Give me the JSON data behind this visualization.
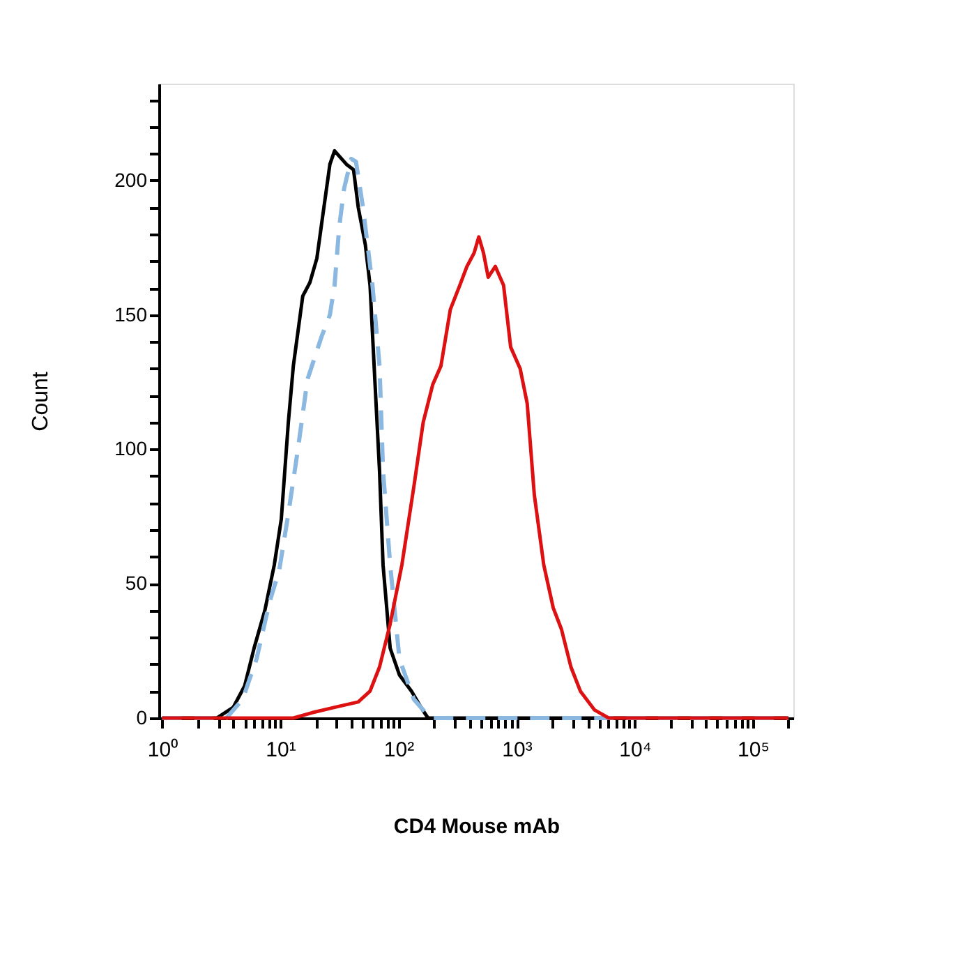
{
  "chart_data": {
    "type": "line",
    "xlabel": "CD4 Mouse mAb",
    "ylabel": "Count",
    "log": "x",
    "grid": false,
    "marker": "none",
    "xlim": [
      0.94,
      220000
    ],
    "ylim": [
      0,
      236
    ],
    "xticks": [
      {
        "value": 1,
        "label": "10⁰"
      },
      {
        "value": 2,
        "label": null
      },
      {
        "value": 3,
        "label": null
      },
      {
        "value": 4,
        "label": null
      },
      {
        "value": 5,
        "label": null
      },
      {
        "value": 6,
        "label": null
      },
      {
        "value": 7,
        "label": null
      },
      {
        "value": 8,
        "label": null
      },
      {
        "value": 9,
        "label": null
      },
      {
        "value": 10,
        "label": "10¹"
      },
      {
        "value": 20,
        "label": null
      },
      {
        "value": 30,
        "label": null
      },
      {
        "value": 40,
        "label": null
      },
      {
        "value": 50,
        "label": null
      },
      {
        "value": 60,
        "label": null
      },
      {
        "value": 70,
        "label": null
      },
      {
        "value": 80,
        "label": null
      },
      {
        "value": 90,
        "label": null
      },
      {
        "value": 100,
        "label": "10²"
      },
      {
        "value": 200,
        "label": null
      },
      {
        "value": 300,
        "label": null
      },
      {
        "value": 400,
        "label": null
      },
      {
        "value": 500,
        "label": null
      },
      {
        "value": 600,
        "label": null
      },
      {
        "value": 700,
        "label": null
      },
      {
        "value": 800,
        "label": null
      },
      {
        "value": 900,
        "label": null
      },
      {
        "value": 1000,
        "label": "10³"
      },
      {
        "value": 2000,
        "label": null
      },
      {
        "value": 3000,
        "label": null
      },
      {
        "value": 4000,
        "label": null
      },
      {
        "value": 5000,
        "label": null
      },
      {
        "value": 6000,
        "label": null
      },
      {
        "value": 7000,
        "label": null
      },
      {
        "value": 8000,
        "label": null
      },
      {
        "value": 9000,
        "label": null
      },
      {
        "value": 10000,
        "label": "10⁴"
      },
      {
        "value": 20000,
        "label": null
      },
      {
        "value": 30000,
        "label": null
      },
      {
        "value": 40000,
        "label": null
      },
      {
        "value": 50000,
        "label": null
      },
      {
        "value": 60000,
        "label": null
      },
      {
        "value": 70000,
        "label": null
      },
      {
        "value": 80000,
        "label": null
      },
      {
        "value": 90000,
        "label": null
      },
      {
        "value": 100000,
        "label": "10⁵"
      },
      {
        "value": 200000,
        "label": null
      }
    ],
    "yticks": [
      0,
      {
        "value": 10,
        "label": null
      },
      {
        "value": 20,
        "label": null
      },
      {
        "value": 30,
        "label": null
      },
      {
        "value": 40,
        "label": null
      },
      50,
      {
        "value": 60,
        "label": null
      },
      {
        "value": 70,
        "label": null
      },
      {
        "value": 80,
        "label": null
      },
      {
        "value": 90,
        "label": null
      },
      100,
      {
        "value": 110,
        "label": null
      },
      {
        "value": 120,
        "label": null
      },
      {
        "value": 130,
        "label": null
      },
      {
        "value": 140,
        "label": null
      },
      150,
      {
        "value": 160,
        "label": null
      },
      {
        "value": 170,
        "label": null
      },
      {
        "value": 180,
        "label": null
      },
      {
        "value": 190,
        "label": null
      },
      200,
      {
        "value": 210,
        "label": null
      },
      {
        "value": 220,
        "label": null
      },
      {
        "value": 230,
        "label": null
      }
    ],
    "series": [
      {
        "color": "#000000",
        "line_style": "solid",
        "x": [
          1,
          2.9,
          4.0,
          5.0,
          6.0,
          7.4,
          8.9,
          10.2,
          11.7,
          12.9,
          15.5,
          17.8,
          20.4,
          22.9,
          26.3,
          28.8,
          31.6,
          36.3,
          41.7,
          45.7,
          52.5,
          57.5,
          63.1,
          69.2,
          74.1,
          85.1,
          102,
          129,
          155,
          178,
          200000
        ],
        "values": [
          0,
          0,
          4,
          12,
          26,
          40,
          57,
          74,
          110,
          131,
          157,
          162,
          171,
          187,
          206,
          211,
          209,
          206,
          204,
          190,
          176,
          161,
          126,
          92,
          57,
          26,
          16,
          10,
          4,
          0,
          0
        ]
      },
      {
        "color": "#8ab8e0",
        "line_style": "dashed",
        "x": [
          1,
          3.5,
          4.8,
          6.3,
          8.1,
          9.8,
          11.7,
          14.1,
          17.0,
          22.4,
          26.3,
          28.8,
          31.6,
          34.7,
          39.8,
          43.7,
          50.1,
          60.3,
          69.2,
          74.1,
          85.1,
          102,
          135,
          186,
          200000
        ],
        "values": [
          0,
          0,
          7,
          22,
          43,
          55,
          76,
          100,
          126,
          142,
          150,
          161,
          183,
          197,
          208,
          207,
          190,
          161,
          131,
          92,
          57,
          22,
          7,
          0,
          0
        ]
      },
      {
        "color": "#dd1111",
        "line_style": "solid",
        "x": [
          1,
          12.9,
          18.6,
          28.8,
          45.7,
          57.5,
          69.2,
          85.1,
          107,
          135,
          162,
          195,
          229,
          275,
          331,
          380,
          437,
          479,
          525,
          575,
          661,
          776,
          891,
          1072,
          1230,
          1413,
          1698,
          2042,
          2399,
          2884,
          3467,
          4571,
          6026,
          200000
        ],
        "values": [
          0,
          0,
          2,
          4,
          6,
          10,
          19,
          35,
          57,
          86,
          110,
          124,
          131,
          152,
          161,
          168,
          173,
          179,
          173,
          164,
          168,
          161,
          138,
          130,
          117,
          83,
          57,
          41,
          33,
          19,
          10,
          3,
          0,
          0
        ]
      }
    ]
  }
}
